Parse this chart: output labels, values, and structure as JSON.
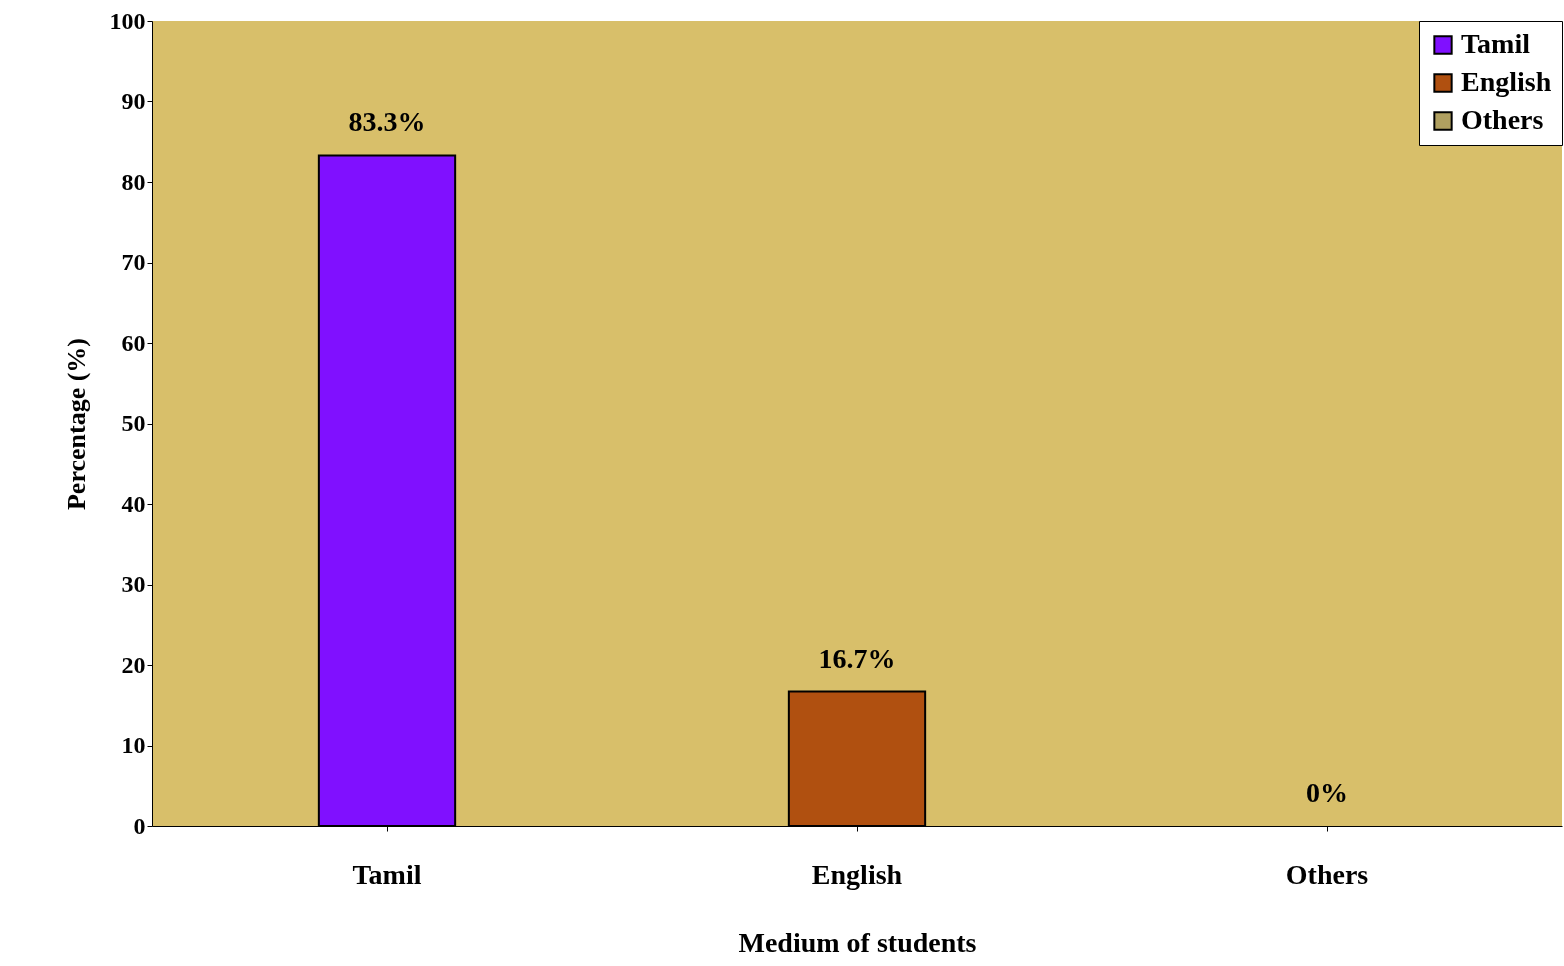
{
  "chart_data": {
    "type": "bar",
    "xlabel": "Medium of students",
    "ylabel": "Percentage (%)",
    "categories": [
      "Tamil",
      "English",
      "Others"
    ],
    "series": [
      {
        "name": "Tamil",
        "color": "#8010ff",
        "values": [
          83.3,
          null,
          null
        ]
      },
      {
        "name": "English",
        "color": "#b05010",
        "values": [
          null,
          16.7,
          null
        ]
      },
      {
        "name": "Others",
        "color": "#b0a060",
        "values": [
          null,
          null,
          0
        ]
      }
    ],
    "value_labels": [
      "83.3%",
      "16.7%",
      "0%"
    ],
    "ylim": [
      0,
      100
    ],
    "yticks": [
      0,
      10,
      20,
      30,
      40,
      50,
      60,
      70,
      80,
      90,
      100
    ],
    "legend": "top right"
  }
}
